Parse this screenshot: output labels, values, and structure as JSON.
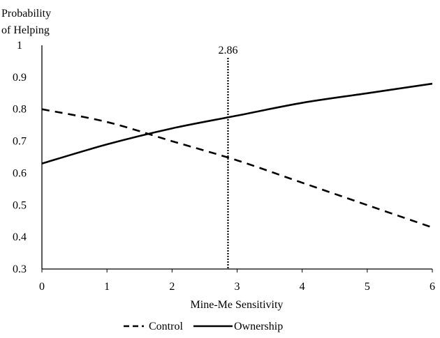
{
  "chart_data": {
    "type": "line",
    "xlabel": "Mine-Me Sensitivity",
    "ylabel_lines": [
      "Probability",
      "of Helping"
    ],
    "xlim": [
      0,
      6
    ],
    "ylim": [
      0.3,
      1
    ],
    "x_ticks": [
      0,
      1,
      2,
      3,
      4,
      5,
      6
    ],
    "x_tick_labels": [
      "0",
      "1",
      "2",
      "3",
      "4",
      "5",
      "6"
    ],
    "y_ticks": [
      0.3,
      0.4,
      0.5,
      0.6,
      0.7,
      0.8,
      0.9,
      1
    ],
    "y_tick_labels": [
      "0.3",
      "0.4",
      "0.5",
      "0.6",
      "0.7",
      "0.8",
      "0.9",
      "1"
    ],
    "grid": false,
    "legend_position": "bottom",
    "series": [
      {
        "name": "Control",
        "style": "dashed",
        "color": "#000000",
        "x": [
          0,
          1,
          2,
          3,
          4,
          5,
          6
        ],
        "y": [
          0.8,
          0.76,
          0.7,
          0.64,
          0.57,
          0.5,
          0.43
        ]
      },
      {
        "name": "Ownership",
        "style": "solid",
        "color": "#000000",
        "x": [
          0,
          1,
          2,
          3,
          4,
          5,
          6
        ],
        "y": [
          0.63,
          0.69,
          0.74,
          0.78,
          0.82,
          0.85,
          0.88
        ]
      }
    ],
    "annotations": [
      {
        "type": "vline",
        "x": 2.86,
        "label": "2.86",
        "style": "dotted"
      }
    ]
  }
}
